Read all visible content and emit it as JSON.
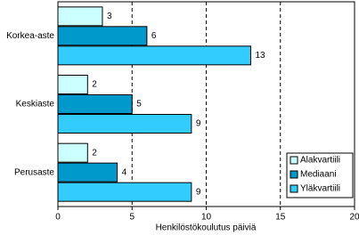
{
  "chart_data": {
    "type": "hbar",
    "categories": [
      "Korkea-aste",
      "Keskiaste",
      "Perusaste"
    ],
    "series": [
      {
        "name": "Alakvartiili",
        "color": "#ccffff",
        "values": [
          3,
          2,
          2
        ]
      },
      {
        "name": "Mediaani",
        "color": "#0099cc",
        "values": [
          6,
          5,
          4
        ]
      },
      {
        "name": "Yläkvartiili",
        "color": "#33ccff",
        "values": [
          13,
          9,
          9
        ]
      }
    ],
    "xlabel": "Henkilöstökoulutus päiviä",
    "xlim": [
      0,
      20
    ],
    "xticks": [
      0,
      5,
      10,
      15,
      20
    ],
    "grid": true,
    "legend": "lower right"
  }
}
